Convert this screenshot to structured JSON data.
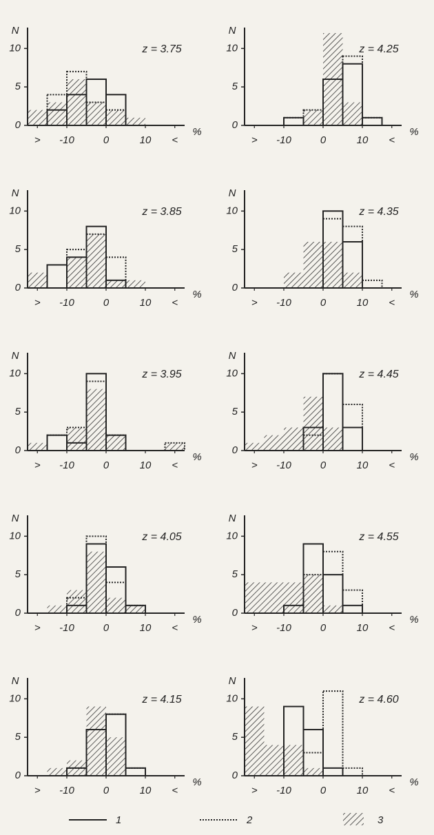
{
  "chart_data": [
    {
      "type": "histogram",
      "title": "z = 3.75",
      "ylabel": "N",
      "xlabel": "%",
      "bins": [
        -20,
        -15,
        -10,
        -5,
        0,
        5,
        10,
        15,
        20
      ],
      "xlim": [
        -20,
        20
      ],
      "ylim": [
        0,
        12
      ],
      "yticks": [
        0,
        5,
        10
      ],
      "xticks": [
        {
          "value": -17.5,
          "label": ">"
        },
        -10,
        0,
        10,
        {
          "value": 17.5,
          "label": "<"
        }
      ],
      "series": [
        {
          "style": "hatched",
          "color": "#333333",
          "values": [
            2,
            3,
            6,
            3,
            2,
            1,
            0,
            0
          ]
        },
        {
          "style": "solid",
          "color": "#222222",
          "values": [
            0,
            2,
            4,
            6,
            4,
            0,
            0,
            0
          ]
        },
        {
          "style": "dotted",
          "color": "#222222",
          "values": [
            0,
            4,
            7,
            3,
            2,
            0,
            0,
            0
          ]
        }
      ]
    },
    {
      "type": "histogram",
      "title": "z = 4.25",
      "ylabel": "N",
      "xlabel": "%",
      "bins": [
        -20,
        -15,
        -10,
        -5,
        0,
        5,
        10,
        15,
        20
      ],
      "xlim": [
        -20,
        20
      ],
      "ylim": [
        0,
        12
      ],
      "yticks": [
        0,
        5,
        10
      ],
      "xticks": [
        {
          "value": -17.5,
          "label": ">"
        },
        -10,
        0,
        10,
        {
          "value": 17.5,
          "label": "<"
        }
      ],
      "series": [
        {
          "style": "hatched",
          "color": "#333333",
          "values": [
            0,
            0,
            0,
            2,
            12,
            3,
            0,
            0
          ]
        },
        {
          "style": "solid",
          "color": "#222222",
          "values": [
            0,
            0,
            1,
            0,
            6,
            8,
            1,
            0
          ]
        },
        {
          "style": "dotted",
          "color": "#222222",
          "values": [
            0,
            0,
            1,
            2,
            6,
            9,
            1,
            0
          ]
        }
      ]
    },
    {
      "type": "histogram",
      "title": "z = 3.85",
      "ylabel": "N",
      "xlabel": "%",
      "bins": [
        -20,
        -15,
        -10,
        -5,
        0,
        5,
        10,
        15,
        20
      ],
      "xlim": [
        -20,
        20
      ],
      "ylim": [
        0,
        12
      ],
      "yticks": [
        0,
        5,
        10
      ],
      "xticks": [
        {
          "value": -17.5,
          "label": ">"
        },
        -10,
        0,
        10,
        {
          "value": 17.5,
          "label": "<"
        }
      ],
      "series": [
        {
          "style": "hatched",
          "color": "#333333",
          "values": [
            2,
            0,
            4,
            7,
            1,
            1,
            0,
            0
          ]
        },
        {
          "style": "solid",
          "color": "#222222",
          "values": [
            0,
            3,
            4,
            8,
            1,
            0,
            0,
            0
          ]
        },
        {
          "style": "dotted",
          "color": "#222222",
          "values": [
            0,
            0,
            5,
            7,
            4,
            0,
            0,
            0
          ]
        }
      ]
    },
    {
      "type": "histogram",
      "title": "z = 4.35",
      "ylabel": "N",
      "xlabel": "%",
      "bins": [
        -20,
        -15,
        -10,
        -5,
        0,
        5,
        10,
        15,
        20
      ],
      "xlim": [
        -20,
        20
      ],
      "ylim": [
        0,
        12
      ],
      "yticks": [
        0,
        5,
        10
      ],
      "xticks": [
        {
          "value": -17.5,
          "label": ">"
        },
        -10,
        0,
        10,
        {
          "value": 17.5,
          "label": "<"
        }
      ],
      "series": [
        {
          "style": "hatched",
          "color": "#333333",
          "values": [
            0,
            0,
            2,
            6,
            6,
            2,
            0,
            0
          ]
        },
        {
          "style": "solid",
          "color": "#222222",
          "values": [
            0,
            0,
            0,
            0,
            10,
            6,
            0,
            0
          ]
        },
        {
          "style": "dotted",
          "color": "#222222",
          "values": [
            0,
            0,
            0,
            0,
            9,
            8,
            1,
            0
          ]
        }
      ]
    },
    {
      "type": "histogram",
      "title": "z = 3.95",
      "ylabel": "N",
      "xlabel": "%",
      "bins": [
        -20,
        -15,
        -10,
        -5,
        0,
        5,
        10,
        15,
        20
      ],
      "xlim": [
        -20,
        20
      ],
      "ylim": [
        0,
        12
      ],
      "yticks": [
        0,
        5,
        10
      ],
      "xticks": [
        {
          "value": -17.5,
          "label": ">"
        },
        -10,
        0,
        10,
        {
          "value": 17.5,
          "label": "<"
        }
      ],
      "series": [
        {
          "style": "hatched",
          "color": "#333333",
          "values": [
            1,
            0,
            3,
            8,
            2,
            0,
            0,
            1
          ]
        },
        {
          "style": "solid",
          "color": "#222222",
          "values": [
            0,
            2,
            1,
            10,
            2,
            0,
            0,
            0
          ]
        },
        {
          "style": "dotted",
          "color": "#222222",
          "values": [
            0,
            2,
            3,
            9,
            2,
            0,
            0,
            1
          ]
        }
      ]
    },
    {
      "type": "histogram",
      "title": "z = 4.45",
      "ylabel": "N",
      "xlabel": "%",
      "bins": [
        -20,
        -15,
        -10,
        -5,
        0,
        5,
        10,
        15,
        20
      ],
      "xlim": [
        -20,
        20
      ],
      "ylim": [
        0,
        12
      ],
      "yticks": [
        0,
        5,
        10
      ],
      "xticks": [
        {
          "value": -17.5,
          "label": ">"
        },
        -10,
        0,
        10,
        {
          "value": 17.5,
          "label": "<"
        }
      ],
      "series": [
        {
          "style": "hatched",
          "color": "#333333",
          "values": [
            1,
            2,
            3,
            7,
            3,
            0,
            0,
            0
          ]
        },
        {
          "style": "solid",
          "color": "#222222",
          "values": [
            0,
            0,
            0,
            3,
            10,
            3,
            0,
            0
          ]
        },
        {
          "style": "dotted",
          "color": "#222222",
          "values": [
            0,
            0,
            0,
            2,
            10,
            6,
            0,
            0
          ]
        }
      ]
    },
    {
      "type": "histogram",
      "title": "z = 4.05",
      "ylabel": "N",
      "xlabel": "%",
      "bins": [
        -20,
        -15,
        -10,
        -5,
        0,
        5,
        10,
        15,
        20
      ],
      "xlim": [
        -20,
        20
      ],
      "ylim": [
        0,
        12
      ],
      "yticks": [
        0,
        5,
        10
      ],
      "xticks": [
        {
          "value": -17.5,
          "label": ">"
        },
        -10,
        0,
        10,
        {
          "value": 17.5,
          "label": "<"
        }
      ],
      "series": [
        {
          "style": "hatched",
          "color": "#333333",
          "values": [
            0,
            1,
            3,
            8,
            2,
            1,
            0,
            0
          ]
        },
        {
          "style": "solid",
          "color": "#222222",
          "values": [
            0,
            0,
            1,
            9,
            6,
            1,
            0,
            0
          ]
        },
        {
          "style": "dotted",
          "color": "#222222",
          "values": [
            0,
            0,
            2,
            10,
            4,
            1,
            0,
            0
          ]
        }
      ]
    },
    {
      "type": "histogram",
      "title": "z = 4.55",
      "ylabel": "N",
      "xlabel": "%",
      "bins": [
        -20,
        -15,
        -10,
        -5,
        0,
        5,
        10,
        15,
        20
      ],
      "xlim": [
        -20,
        20
      ],
      "ylim": [
        0,
        12
      ],
      "yticks": [
        0,
        5,
        10
      ],
      "xticks": [
        {
          "value": -17.5,
          "label": ">"
        },
        -10,
        0,
        10,
        {
          "value": 17.5,
          "label": "<"
        }
      ],
      "series": [
        {
          "style": "hatched",
          "color": "#333333",
          "values": [
            4,
            4,
            4,
            5,
            1,
            0,
            0,
            0
          ]
        },
        {
          "style": "solid",
          "color": "#222222",
          "values": [
            0,
            0,
            1,
            9,
            5,
            1,
            0,
            0
          ]
        },
        {
          "style": "dotted",
          "color": "#222222",
          "values": [
            0,
            0,
            0,
            5,
            8,
            3,
            0,
            0
          ]
        }
      ]
    },
    {
      "type": "histogram",
      "title": "z = 4.15",
      "ylabel": "N",
      "xlabel": "%",
      "bins": [
        -20,
        -15,
        -10,
        -5,
        0,
        5,
        10,
        15,
        20
      ],
      "xlim": [
        -20,
        20
      ],
      "ylim": [
        0,
        12
      ],
      "yticks": [
        0,
        5,
        10
      ],
      "xticks": [
        {
          "value": -17.5,
          "label": ">"
        },
        -10,
        0,
        10,
        {
          "value": 17.5,
          "label": "<"
        }
      ],
      "series": [
        {
          "style": "hatched",
          "color": "#333333",
          "values": [
            0,
            1,
            2,
            9,
            5,
            0,
            0,
            0
          ]
        },
        {
          "style": "solid",
          "color": "#222222",
          "values": [
            0,
            0,
            1,
            6,
            8,
            1,
            0,
            0
          ]
        },
        {
          "style": "dotted",
          "color": "#222222",
          "values": [
            0,
            0,
            1,
            6,
            8,
            1,
            0,
            0
          ]
        }
      ]
    },
    {
      "type": "histogram",
      "title": "z = 4.60",
      "ylabel": "N",
      "xlabel": "%",
      "bins": [
        -20,
        -15,
        -10,
        -5,
        0,
        5,
        10,
        15,
        20
      ],
      "xlim": [
        -20,
        20
      ],
      "ylim": [
        0,
        12
      ],
      "yticks": [
        0,
        5,
        10
      ],
      "xticks": [
        {
          "value": -17.5,
          "label": ">"
        },
        -10,
        0,
        10,
        {
          "value": 17.5,
          "label": "<"
        }
      ],
      "series": [
        {
          "style": "hatched",
          "color": "#333333",
          "values": [
            9,
            4,
            4,
            1,
            0,
            0,
            0,
            0
          ]
        },
        {
          "style": "solid",
          "color": "#222222",
          "values": [
            0,
            0,
            9,
            6,
            1,
            0,
            0,
            0
          ]
        },
        {
          "style": "dotted",
          "color": "#222222",
          "values": [
            0,
            0,
            0,
            3,
            11,
            1,
            0,
            0
          ]
        }
      ]
    }
  ],
  "legend": [
    {
      "label": "1",
      "style": "solid"
    },
    {
      "label": "2",
      "style": "dotted"
    },
    {
      "label": "3",
      "style": "hatched"
    }
  ]
}
